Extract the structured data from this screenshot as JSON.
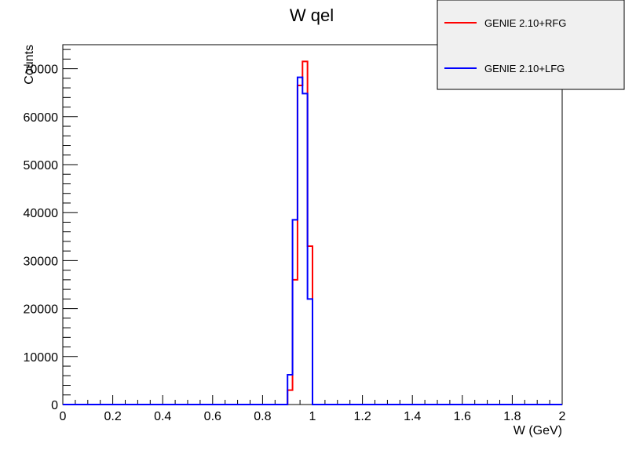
{
  "chart_data": {
    "type": "line",
    "title": "W qel",
    "xlabel": "W (GeV)",
    "ylabel": "Counts",
    "xlim": [
      0,
      2
    ],
    "ylim": [
      0,
      75000
    ],
    "x_ticks": [
      "0",
      "0.2",
      "0.4",
      "0.6",
      "0.8",
      "1",
      "1.2",
      "1.4",
      "1.6",
      "1.8",
      "2"
    ],
    "y_ticks": [
      "0",
      "10000",
      "20000",
      "30000",
      "40000",
      "50000",
      "60000",
      "70000"
    ],
    "legend_position": "top-right",
    "grid": false,
    "bin_edges": [
      0.9,
      0.92,
      0.94,
      0.96,
      0.98,
      1.0,
      1.02
    ],
    "series": [
      {
        "name": "GENIE 2.10+RFG",
        "color": "#ff0000",
        "values": [
          3000,
          26000,
          66500,
          71500,
          33000,
          0
        ]
      },
      {
        "name": "GENIE 2.10+LFG",
        "color": "#0000ff",
        "values": [
          6200,
          38500,
          68200,
          64800,
          22000,
          0
        ]
      }
    ]
  }
}
